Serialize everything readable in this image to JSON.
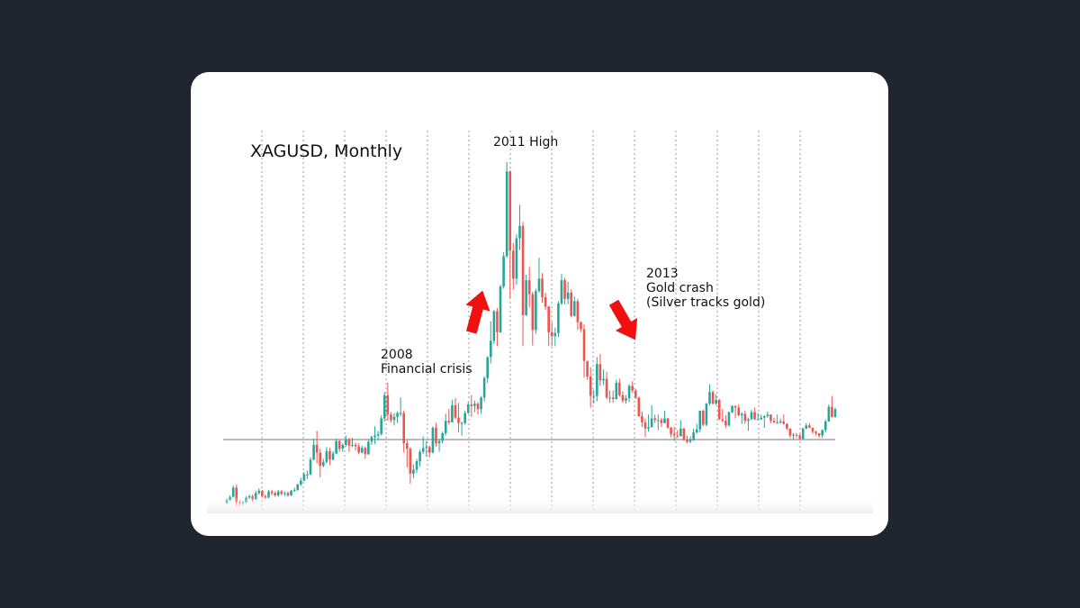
{
  "chart_data": {
    "type": "candlestick",
    "title": "XAGUSD, Monthly",
    "annotations": [
      [
        "2011 High"
      ],
      [
        "2008",
        "Financial crisis"
      ],
      [
        "2013",
        "Gold crash",
        "(Silver tracks gold)"
      ]
    ],
    "up_color": "#26a69a",
    "down_color": "#ef5350",
    "open": [
      5.9,
      6.3,
      6.7,
      7.9,
      6.0,
      5.9,
      6.0,
      6.6,
      6.8,
      6.4,
      7.2,
      7.5,
      6.8,
      6.6,
      7.4,
      7.2,
      6.9,
      7.4,
      7.1,
      7.2,
      6.9,
      7.5,
      7.6,
      8.3,
      8.8,
      9.6,
      9.6,
      11.5,
      13.4,
      12.4,
      10.7,
      11.2,
      12.6,
      11.5,
      12.3,
      13.9,
      12.9,
      13.4,
      14.1,
      13.3,
      13.4,
      13.2,
      12.4,
      13.0,
      12.2,
      13.8,
      14.4,
      14.6,
      14.8,
      16.8,
      19.8,
      17.3,
      16.6,
      17.0,
      17.5,
      17.5,
      13.6,
      12.9,
      9.7,
      10.2,
      11.3,
      12.5,
      13.0,
      13.1,
      12.4,
      15.6,
      13.6,
      13.9,
      14.9,
      16.5,
      16.3,
      18.5,
      16.9,
      16.2,
      16.2,
      17.5,
      18.6,
      18.4,
      18.7,
      18.0,
      19.5,
      22.0,
      24.7,
      26.8,
      30.6,
      27.9,
      33.8,
      37.7,
      48.6,
      38.4,
      34.8,
      40.0,
      41.6,
      30.1,
      34.6,
      32.8,
      28.2,
      33.2,
      34.8,
      32.4,
      31.2,
      27.9,
      27.4,
      27.8,
      31.6,
      34.6,
      32.2,
      33.0,
      30.0,
      31.9,
      29.2,
      28.3,
      24.2,
      22.2,
      19.7,
      19.7,
      23.8,
      21.7,
      21.9,
      19.5,
      19.5,
      19.3,
      21.4,
      19.8,
      19.1,
      19.4,
      21.0,
      20.4,
      19.5,
      17.1,
      16.3,
      15.5,
      15.7,
      16.8,
      16.6,
      16.6,
      16.2,
      16.8,
      15.6,
      14.8,
      14.6,
      14.5,
      15.5,
      14.1,
      13.8,
      14.0,
      15.0,
      15.4,
      17.8,
      16.0,
      18.7,
      20.2,
      18.7,
      19.2,
      16.7,
      16.5,
      15.9,
      17.6,
      18.4,
      18.2,
      17.2,
      17.4,
      16.5,
      16.7,
      17.6,
      16.7,
      16.7,
      16.9,
      17.1,
      17.3,
      16.5,
      16.3,
      16.3,
      16.4,
      16.1,
      15.5,
      14.6,
      14.7,
      14.6,
      14.2,
      15.5,
      15.9,
      15.6,
      15.1,
      14.9,
      14.6,
      15.3,
      16.4,
      18.3,
      17.0
    ],
    "high": [
      6.5,
      6.9,
      8.2,
      8.3,
      6.3,
      6.2,
      6.8,
      7.0,
      7.0,
      7.5,
      7.8,
      7.6,
      7.0,
      7.6,
      7.6,
      7.4,
      7.6,
      7.6,
      7.4,
      7.4,
      7.6,
      7.9,
      8.4,
      9.2,
      9.9,
      10.1,
      11.8,
      14.2,
      15.2,
      12.9,
      11.6,
      13.1,
      13.0,
      12.6,
      14.2,
      14.1,
      13.6,
      14.6,
      14.3,
      14.3,
      13.7,
      13.6,
      13.3,
      13.2,
      14.0,
      14.6,
      15.8,
      15.2,
      17.2,
      20.2,
      21.4,
      17.6,
      17.5,
      17.7,
      19.5,
      17.8,
      14.0,
      13.1,
      10.9,
      11.6,
      12.8,
      14.5,
      13.9,
      13.3,
      15.8,
      16.2,
      14.2,
      15.1,
      17.4,
      18.0,
      19.2,
      19.4,
      18.8,
      16.4,
      17.8,
      18.9,
      19.8,
      19.1,
      18.9,
      19.7,
      22.2,
      24.8,
      29.3,
      30.8,
      31.0,
      34.0,
      38.2,
      49.8,
      48.7,
      39.4,
      40.5,
      44.3,
      42.1,
      35.3,
      36.3,
      33.1,
      33.5,
      37.5,
      35.5,
      33.0,
      31.3,
      29.2,
      28.5,
      31.9,
      35.4,
      34.9,
      34.4,
      33.4,
      32.5,
      32.2,
      29.3,
      28.9,
      24.2,
      23.4,
      20.5,
      24.7,
      25.1,
      23.1,
      22.8,
      20.4,
      20.4,
      21.8,
      21.9,
      20.3,
      19.8,
      21.2,
      21.6,
      20.6,
      19.6,
      17.7,
      16.8,
      17.3,
      18.5,
      17.3,
      17.3,
      16.9,
      17.8,
      16.9,
      15.7,
      15.7,
      15.3,
      16.6,
      15.6,
      14.6,
      14.5,
      15.5,
      16.1,
      17.8,
      17.9,
      18.8,
      21.2,
      20.4,
      19.9,
      19.3,
      18.0,
      17.2,
      17.7,
      18.5,
      18.5,
      18.6,
      17.6,
      17.8,
      16.9,
      17.9,
      18.2,
      17.5,
      17.3,
      17.2,
      17.7,
      17.3,
      16.9,
      17.3,
      16.8,
      17.3,
      16.2,
      15.5,
      14.9,
      14.9,
      14.8,
      15.6,
      16.2,
      16.2,
      15.6,
      15.2,
      14.9,
      15.4,
      16.7,
      18.6,
      19.7,
      18.2
    ],
    "low": [
      5.8,
      6.2,
      6.6,
      5.5,
      5.5,
      5.6,
      5.9,
      6.4,
      6.1,
      6.3,
      7.0,
      6.6,
      6.4,
      6.5,
      6.9,
      6.7,
      6.7,
      6.9,
      6.8,
      6.7,
      6.8,
      7.3,
      7.5,
      8.1,
      8.7,
      9.0,
      9.5,
      11.4,
      11.0,
      9.2,
      10.5,
      11.0,
      10.8,
      11.4,
      12.2,
      12.5,
      12.5,
      13.2,
      12.5,
      13.1,
      12.7,
      12.2,
      12.3,
      11.6,
      12.1,
      13.4,
      13.5,
      14.0,
      14.6,
      16.4,
      16.5,
      16.3,
      15.9,
      16.2,
      17.1,
      12.4,
      10.5,
      8.4,
      9.1,
      9.8,
      10.6,
      12.2,
      11.9,
      11.8,
      12.3,
      13.2,
      12.5,
      13.6,
      14.6,
      16.0,
      16.3,
      16.7,
      15.0,
      14.6,
      16.0,
      17.4,
      17.0,
      17.6,
      17.3,
      17.4,
      19.0,
      21.4,
      23.9,
      26.4,
      26.1,
      27.8,
      33.5,
      37.5,
      32.3,
      33.4,
      34.0,
      38.5,
      26.1,
      30.0,
      31.1,
      26.2,
      27.7,
      33.0,
      31.7,
      30.8,
      26.1,
      26.1,
      26.1,
      27.3,
      31.4,
      31.5,
      31.5,
      29.8,
      29.9,
      28.2,
      27.9,
      22.1,
      21.8,
      18.2,
      18.7,
      19.0,
      21.0,
      21.1,
      19.3,
      18.8,
      18.8,
      19.2,
      19.6,
      18.8,
      18.7,
      18.9,
      20.1,
      19.3,
      17.0,
      15.7,
      14.4,
      15.1,
      15.6,
      16.2,
      15.3,
      15.7,
      16.2,
      15.5,
      14.4,
      13.9,
      14.3,
      14.5,
      13.9,
      13.6,
      13.6,
      13.9,
      14.8,
      15.0,
      15.8,
      15.8,
      18.5,
      18.6,
      18.5,
      16.6,
      16.3,
      15.6,
      15.8,
      17.5,
      16.8,
      17.1,
      16.1,
      16.1,
      15.2,
      16.6,
      16.6,
      16.6,
      16.6,
      15.6,
      16.9,
      16.2,
      16.2,
      16.1,
      16.1,
      16.0,
      15.3,
      14.3,
      14.0,
      14.3,
      14.0,
      14.1,
      15.4,
      15.6,
      14.8,
      14.6,
      14.3,
      14.3,
      15.0,
      16.4,
      16.9,
      16.9
    ],
    "close": [
      6.3,
      6.7,
      7.9,
      6.0,
      5.9,
      6.0,
      6.6,
      6.8,
      6.4,
      7.2,
      7.5,
      6.8,
      6.6,
      7.4,
      7.2,
      6.9,
      7.4,
      7.1,
      7.2,
      6.9,
      7.5,
      7.6,
      8.3,
      8.8,
      9.6,
      9.6,
      11.5,
      13.4,
      12.4,
      10.7,
      11.2,
      12.6,
      11.5,
      12.3,
      13.9,
      12.9,
      13.4,
      14.1,
      13.3,
      13.4,
      13.2,
      12.4,
      13.0,
      12.2,
      13.8,
      14.4,
      14.6,
      14.8,
      16.8,
      19.8,
      17.3,
      16.6,
      17.0,
      17.5,
      17.5,
      13.6,
      12.9,
      9.7,
      10.2,
      11.3,
      12.5,
      13.0,
      13.1,
      12.4,
      15.6,
      13.6,
      13.9,
      14.9,
      16.5,
      16.3,
      18.5,
      16.9,
      16.2,
      16.2,
      17.5,
      18.6,
      18.4,
      18.7,
      18.0,
      19.5,
      22.0,
      24.7,
      26.8,
      30.6,
      27.9,
      33.8,
      37.7,
      48.6,
      38.4,
      34.8,
      40.0,
      41.6,
      30.1,
      34.6,
      32.8,
      28.2,
      33.2,
      34.8,
      32.4,
      31.2,
      27.9,
      27.4,
      27.8,
      31.6,
      34.6,
      32.2,
      33.0,
      30.0,
      31.9,
      29.2,
      28.3,
      24.2,
      22.2,
      19.7,
      19.7,
      23.8,
      21.7,
      21.9,
      19.5,
      19.5,
      19.3,
      21.4,
      19.8,
      19.1,
      19.4,
      21.0,
      20.4,
      19.5,
      17.1,
      16.3,
      15.5,
      15.7,
      16.8,
      16.6,
      16.6,
      16.2,
      16.8,
      15.6,
      14.8,
      14.6,
      14.5,
      15.5,
      14.1,
      13.8,
      14.0,
      15.0,
      15.4,
      17.8,
      16.0,
      18.7,
      20.2,
      18.7,
      19.2,
      16.7,
      16.5,
      15.9,
      17.6,
      18.4,
      18.2,
      17.2,
      17.4,
      16.5,
      16.7,
      17.6,
      16.7,
      16.7,
      16.9,
      17.1,
      17.3,
      16.5,
      16.3,
      16.3,
      16.4,
      16.1,
      15.5,
      14.6,
      14.7,
      14.6,
      14.2,
      15.5,
      15.9,
      15.6,
      15.1,
      14.9,
      14.6,
      15.3,
      16.4,
      18.3,
      17.0,
      18.0
    ]
  }
}
